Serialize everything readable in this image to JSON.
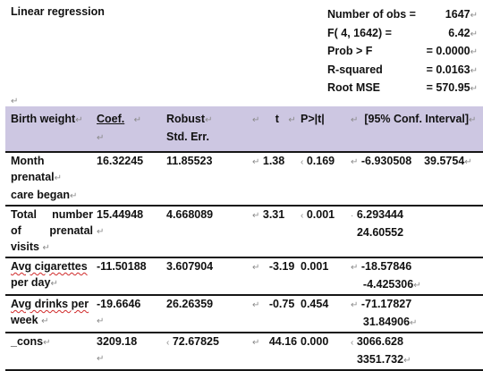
{
  "title": "Linear regression",
  "stats": [
    {
      "label": "Number of obs =",
      "value": "1647"
    },
    {
      "label": "F(   4,    1642) =",
      "value": "6.42"
    },
    {
      "label": "Prob > F",
      "value": "=  0.0000"
    },
    {
      "label": "R-squared",
      "value": "=  0.0163"
    },
    {
      "label": "Root MSE",
      "value": "=   570.95"
    }
  ],
  "marks": {
    "para": "↵",
    "cell": "↵"
  },
  "header": {
    "col1": "Birth weight",
    "coef": "Coef.",
    "robust": "Robust",
    "std_err": "Std. Err.",
    "t": "t",
    "p": "P>|t|",
    "ci": "[95% Conf. Interval]"
  },
  "rows": [
    {
      "label": [
        "Month",
        "prenatal",
        "care began"
      ],
      "coef": "16.32245",
      "se": "11.85523",
      "t": "1.38",
      "p": "0.169",
      "ci_low": "-6.930508",
      "ci_high": "39.5754"
    },
    {
      "label": [
        "Total   number",
        "of        prenatal",
        "visits"
      ],
      "coef": "15.44948",
      "se": "4.668089",
      "t": "3.31",
      "p": "0.001",
      "ci_low": "6.293444",
      "ci_high": "24.60552"
    },
    {
      "label": [
        "Avg  cigarettes",
        "per day"
      ],
      "coef": "-11.50188",
      "se": "3.607904",
      "t": "-3.19",
      "p": "0.001",
      "ci_low": "-18.57846",
      "ci_high": "-4.425306"
    },
    {
      "label": [
        "Avg  drinks  per",
        "week"
      ],
      "coef": "-19.6646",
      "se": "26.26359",
      "t": "-0.75",
      "p": "0.454",
      "ci_low": "-71.17827",
      "ci_high": "31.84906"
    },
    {
      "label": [
        "_cons"
      ],
      "coef": "3209.18",
      "se": "72.67825",
      "t": "44.16",
      "p": "0.000",
      "ci_low": "3066.628",
      "ci_high": "3351.732"
    }
  ]
}
